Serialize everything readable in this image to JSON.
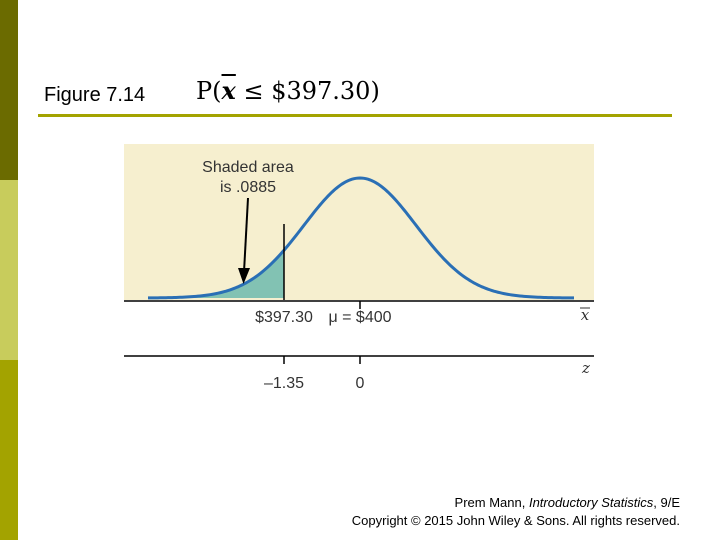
{
  "slide": {
    "figure_label": "Figure 7.14",
    "probability": {
      "prefix": "P(",
      "variable": "x",
      "relation": " ≤ ",
      "value": "$397.30",
      "suffix": ")"
    },
    "colors": {
      "band_dark": "#6b6b00",
      "band_light": "#c8cc5c",
      "band_mid": "#a3a300",
      "panel": "#f6efcf",
      "curve": "#2a6fb5",
      "shade": "#5bb3aa"
    }
  },
  "diagram": {
    "annotation_line1": "Shaded area",
    "annotation_line2": "is .0885",
    "shaded_area": 0.0885,
    "mean": 400,
    "cutoff": 397.3,
    "z_cutoff": -1.35,
    "x_tick_cutoff": "$397.30",
    "x_tick_mean": "μ = $400",
    "x_axis_label": "x",
    "z_tick_cutoff": "–1.35",
    "z_tick_mean": "0",
    "z_axis_label": "z"
  },
  "credit": {
    "line1_author": "Prem Mann, ",
    "line1_title": "Introductory Statistics",
    "line1_edition": ", 9/E",
    "line2": "Copyright © 2015 John Wiley & Sons. All rights reserved."
  }
}
